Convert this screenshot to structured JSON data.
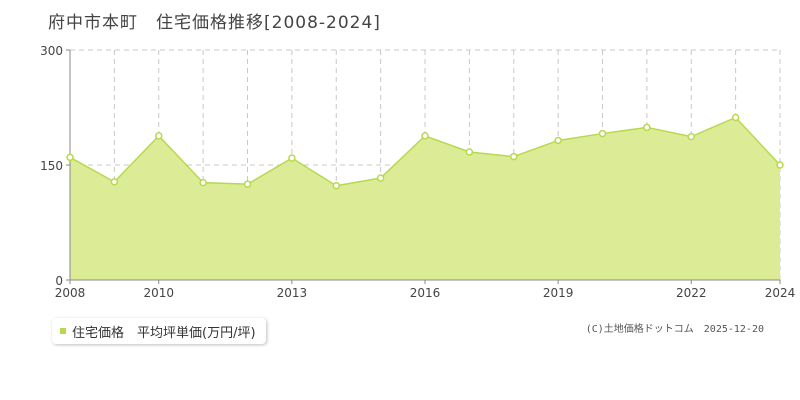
{
  "title": "府中市本町　住宅価格推移[2008-2024]",
  "legend": {
    "label": "住宅価格　平均坪単価(万円/坪)"
  },
  "copyright": "(C)土地価格ドットコム　2025-12-20",
  "colors": {
    "fill": "#dcec96",
    "line": "#b7d94e",
    "marker_fill": "#ffffff",
    "grid": "#c8c8c8",
    "axis": "#888888"
  },
  "chart_data": {
    "type": "area",
    "title": "府中市本町　住宅価格推移[2008-2024]",
    "xlabel": "",
    "ylabel": "",
    "x": [
      2008,
      2009,
      2010,
      2011,
      2012,
      2013,
      2014,
      2015,
      2016,
      2017,
      2018,
      2019,
      2020,
      2021,
      2022,
      2023,
      2024
    ],
    "series": [
      {
        "name": "住宅価格　平均坪単価(万円/坪)",
        "values": [
          160,
          128,
          188,
          127,
          125,
          159,
          123,
          133,
          188,
          167,
          161,
          182,
          191,
          199,
          187,
          212,
          150
        ]
      }
    ],
    "xlim": [
      2008,
      2024
    ],
    "ylim": [
      0,
      300
    ],
    "x_tick_labels": [
      "2008",
      "2010",
      "2013",
      "2016",
      "2019",
      "2022",
      "2024"
    ],
    "y_tick_labels": [
      "0",
      "150",
      "300"
    ],
    "grid": true,
    "legend_position": "bottom-left"
  }
}
